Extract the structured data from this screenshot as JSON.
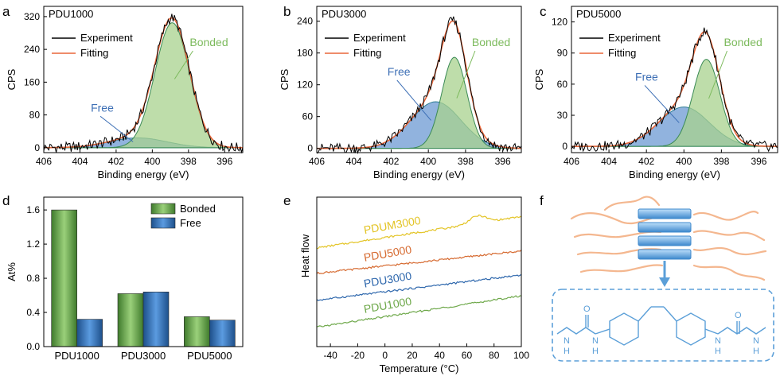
{
  "colors": {
    "experiment": "#000000",
    "fitting": "#e8663a",
    "bonded_fill": "#a8d18d",
    "bonded_line": "#3a8a55",
    "free_fill": "#7ea6d8",
    "free_line": "#2f7d93",
    "free_label": "#3d6fb5",
    "bonded_label": "#7cba5c",
    "bar_green": "#5d9a45",
    "bar_blue": "#2e6db0",
    "dsc_pdum3000": "#e3c425",
    "dsc_pdu5000": "#d66a30",
    "dsc_pdu3000": "#2f68ad",
    "dsc_pdu1000": "#6ea84a",
    "schematic_chain": "#f4b78f",
    "schematic_block": "#5b9fd8",
    "schematic_molecule": "#5b9fd8"
  },
  "panels": {
    "a": "a",
    "b": "b",
    "c": "c",
    "d": "d",
    "e": "e",
    "f": "f"
  },
  "chart_data": [
    {
      "panel": "a",
      "type": "line",
      "title": "PDU1000",
      "xlabel": "Binding energy (eV)",
      "ylabel": "CPS",
      "xlim": [
        406,
        395
      ],
      "ylim": [
        -12,
        345
      ],
      "xticks": [
        406,
        404,
        402,
        400,
        398,
        396
      ],
      "yticks": [
        0,
        80,
        160,
        240,
        320
      ],
      "legend": [
        "Experiment",
        "Fitting"
      ],
      "labels": {
        "bonded": "Bonded",
        "free": "Free"
      },
      "bonded": {
        "center": 398.9,
        "height": 305,
        "sigma": 0.95
      },
      "free": {
        "center": 400.8,
        "height": 24,
        "sigma": 1.6
      }
    },
    {
      "panel": "b",
      "type": "line",
      "title": "PDU3000",
      "xlabel": "Binding energy (eV)",
      "ylabel": "CPS",
      "xlim": [
        406,
        395
      ],
      "ylim": [
        -8,
        268
      ],
      "xticks": [
        406,
        404,
        402,
        400,
        398,
        396
      ],
      "yticks": [
        0,
        60,
        120,
        180,
        240
      ],
      "legend": [
        "Experiment",
        "Fitting"
      ],
      "labels": {
        "bonded": "Bonded",
        "free": "Free"
      },
      "bonded": {
        "center": 398.6,
        "height": 172,
        "sigma": 0.68
      },
      "free": {
        "center": 399.6,
        "height": 88,
        "sigma": 1.35
      }
    },
    {
      "panel": "c",
      "type": "line",
      "title": "PDU5000",
      "xlabel": "Binding energy (eV)",
      "ylabel": "CPS",
      "xlim": [
        406,
        395
      ],
      "ylim": [
        -6,
        135
      ],
      "xticks": [
        406,
        404,
        402,
        400,
        398,
        396
      ],
      "yticks": [
        0,
        30,
        60,
        90,
        120
      ],
      "legend": [
        "Experiment",
        "Fitting"
      ],
      "labels": {
        "bonded": "Bonded",
        "free": "Free"
      },
      "bonded": {
        "center": 398.8,
        "height": 84,
        "sigma": 0.72
      },
      "free": {
        "center": 400.0,
        "height": 38,
        "sigma": 1.35
      }
    },
    {
      "panel": "d",
      "type": "bar",
      "ylabel": "At%",
      "categories": [
        "PDU1000",
        "PDU3000",
        "PDU5000"
      ],
      "series": [
        {
          "name": "Bonded",
          "values": [
            1.6,
            0.62,
            0.35
          ]
        },
        {
          "name": "Free",
          "values": [
            0.32,
            0.64,
            0.31
          ]
        }
      ],
      "ylim": [
        0,
        1.75
      ],
      "yticks": [
        "0.0",
        "0.4",
        "0.8",
        "1.2",
        "1.6"
      ],
      "legend": "top-right"
    },
    {
      "panel": "e",
      "type": "line",
      "xlabel": "Temperature (°C)",
      "ylabel": "Heat flow",
      "xlim": [
        -50,
        100
      ],
      "xticks": [
        -40,
        -20,
        0,
        20,
        40,
        60,
        80,
        100
      ],
      "series": [
        {
          "name": "PDUM3000",
          "start": 6.6,
          "end": 8.7,
          "peak": {
            "x": 68,
            "height": 0.5,
            "width": 6
          }
        },
        {
          "name": "PDU5000",
          "start": 4.9,
          "end": 6.4
        },
        {
          "name": "PDU3000",
          "start": 3.1,
          "end": 4.8
        },
        {
          "name": "PDU1000",
          "start": 1.3,
          "end": 3.4
        }
      ],
      "ylim": [
        0,
        10
      ]
    }
  ]
}
